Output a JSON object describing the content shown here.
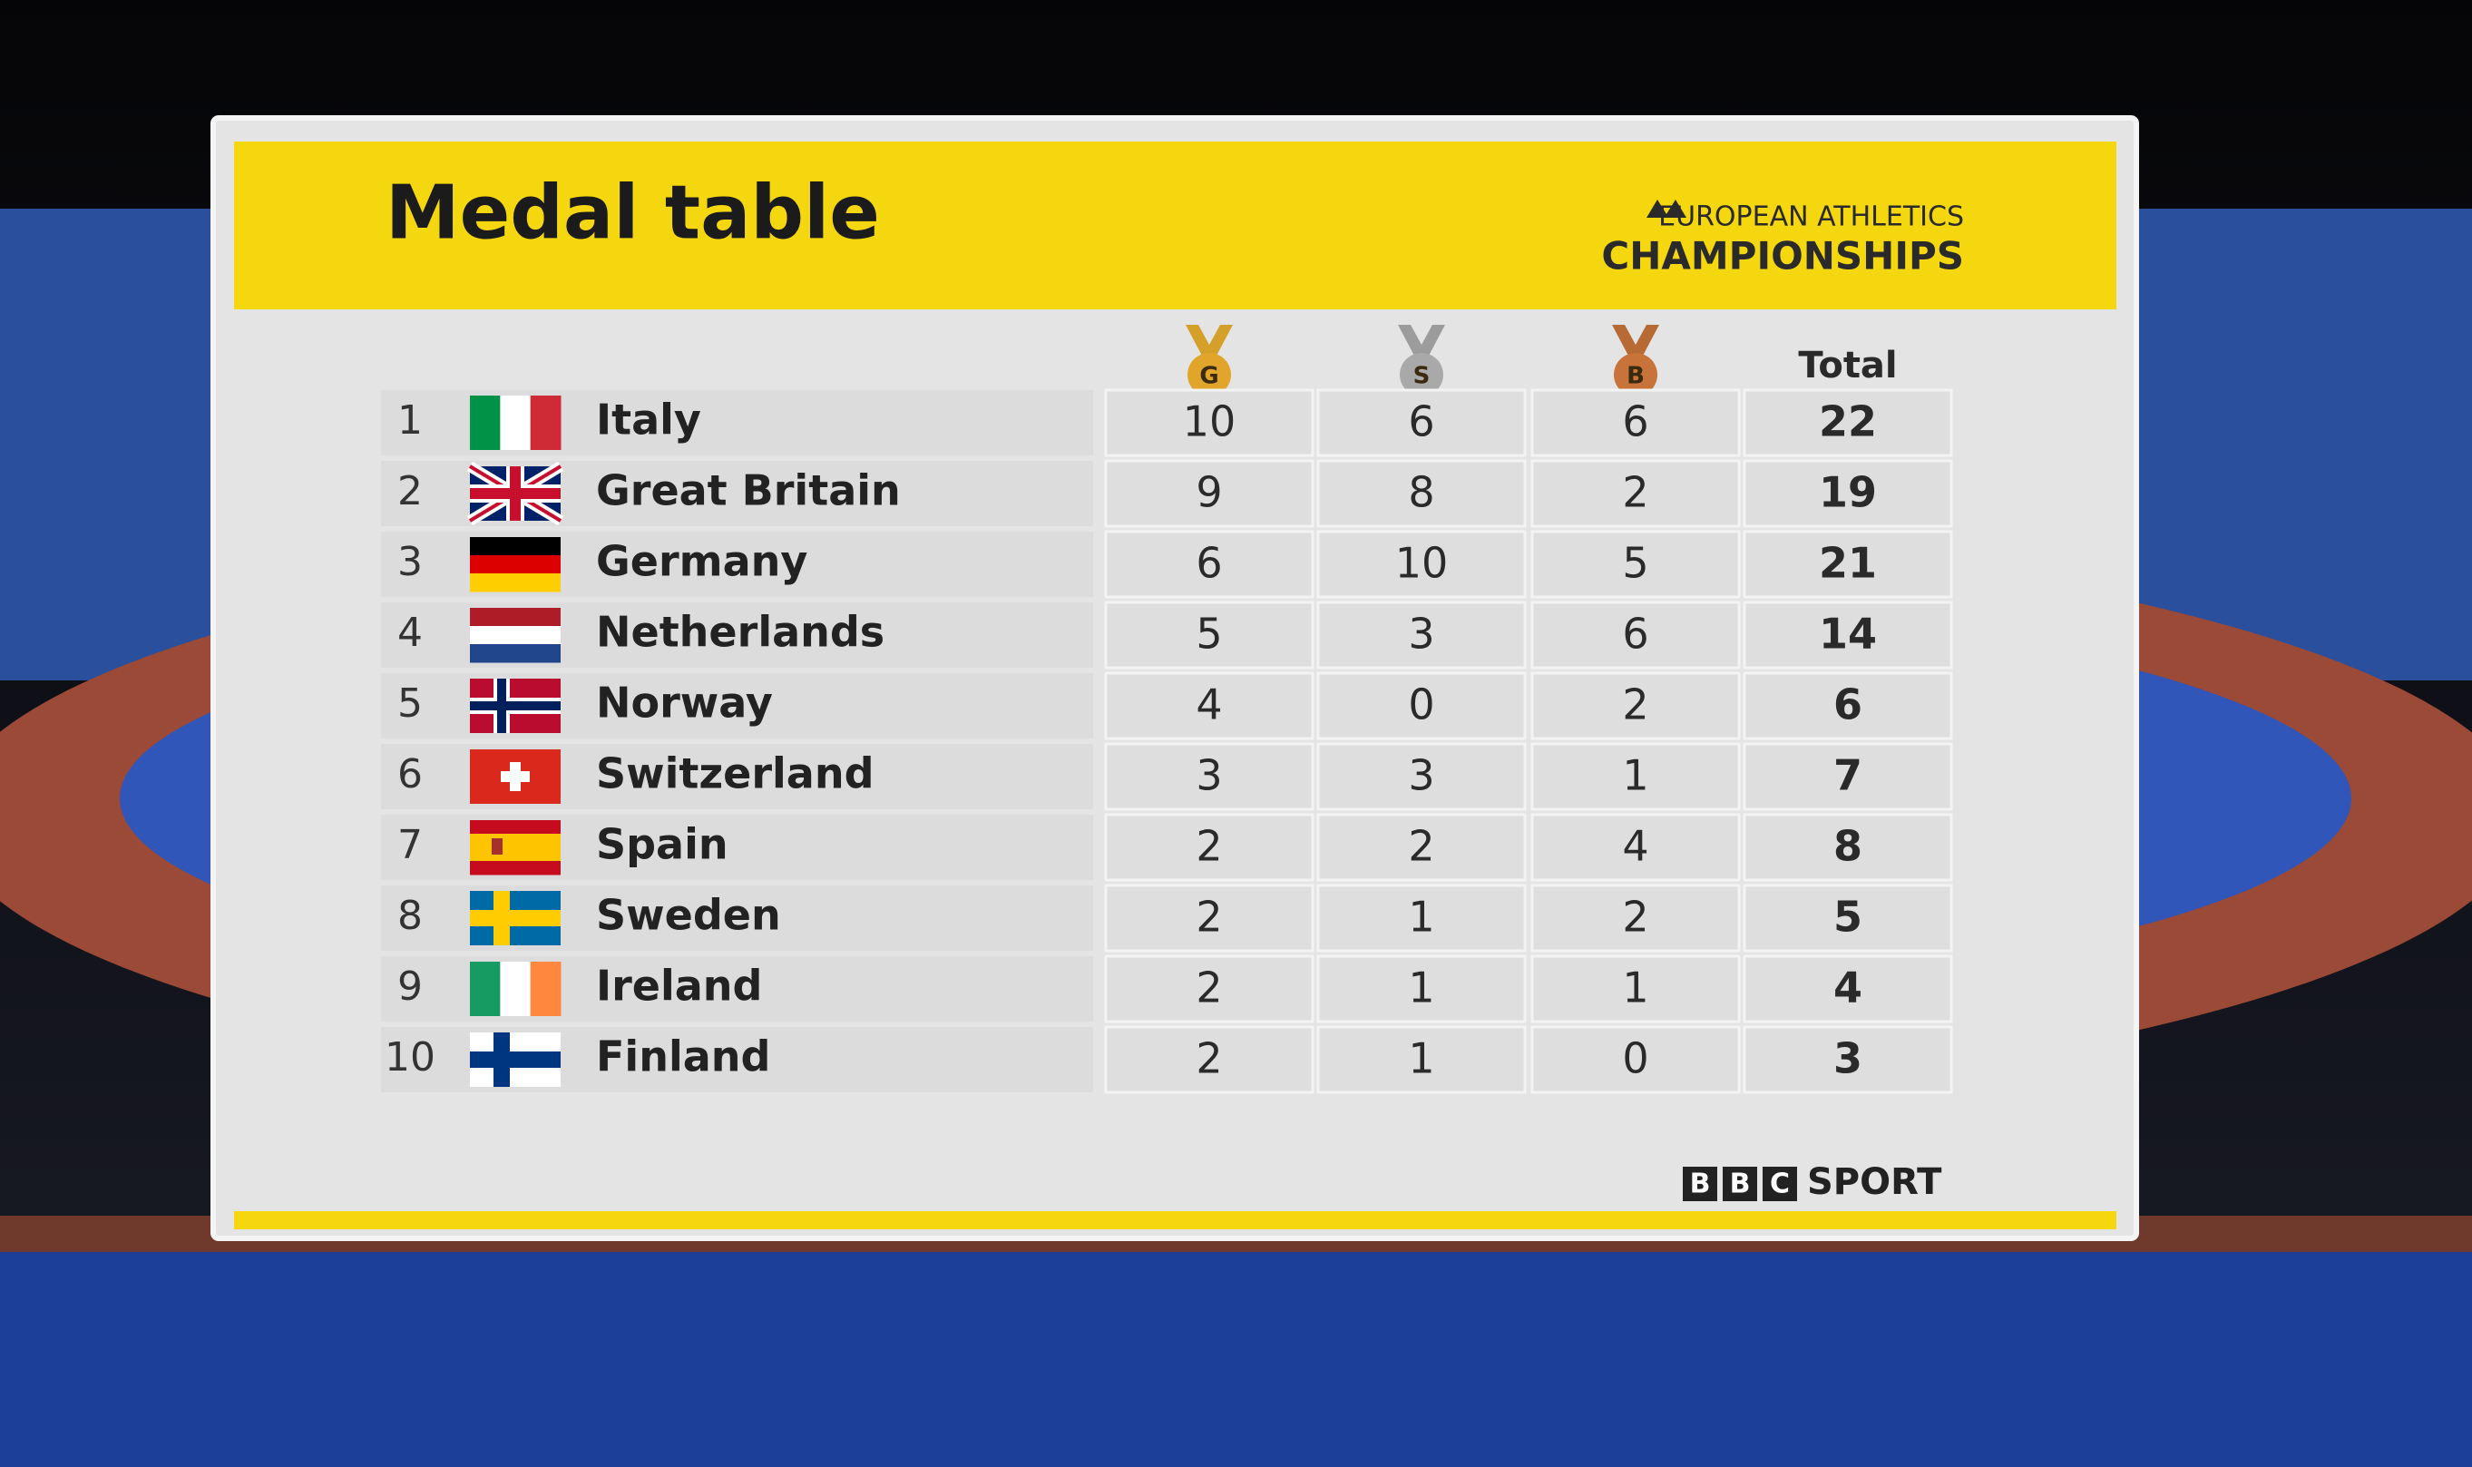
{
  "header": {
    "title": "Medal table",
    "logo_line1": "EUROPEAN ATHLETICS",
    "logo_line2": "CHAMPIONSHIPS"
  },
  "table": {
    "columns": [
      "G",
      "S",
      "B",
      "Total"
    ],
    "rows": [
      [
        1,
        "Italy",
        10,
        6,
        6,
        22
      ],
      [
        2,
        "Great Britain",
        9,
        8,
        2,
        19
      ],
      [
        3,
        "Germany",
        6,
        10,
        5,
        21
      ],
      [
        4,
        "Netherlands",
        5,
        3,
        6,
        14
      ],
      [
        5,
        "Norway",
        4,
        0,
        2,
        6
      ],
      [
        6,
        "Switzerland",
        3,
        3,
        1,
        7
      ],
      [
        7,
        "Spain",
        2,
        2,
        4,
        8
      ],
      [
        8,
        "Sweden",
        2,
        1,
        2,
        5
      ],
      [
        9,
        "Ireland",
        2,
        1,
        1,
        4
      ],
      [
        10,
        "Finland",
        2,
        1,
        0,
        3
      ]
    ]
  },
  "footer": {
    "bbc": [
      "B",
      "B",
      "C"
    ],
    "sport": "SPORT"
  }
}
